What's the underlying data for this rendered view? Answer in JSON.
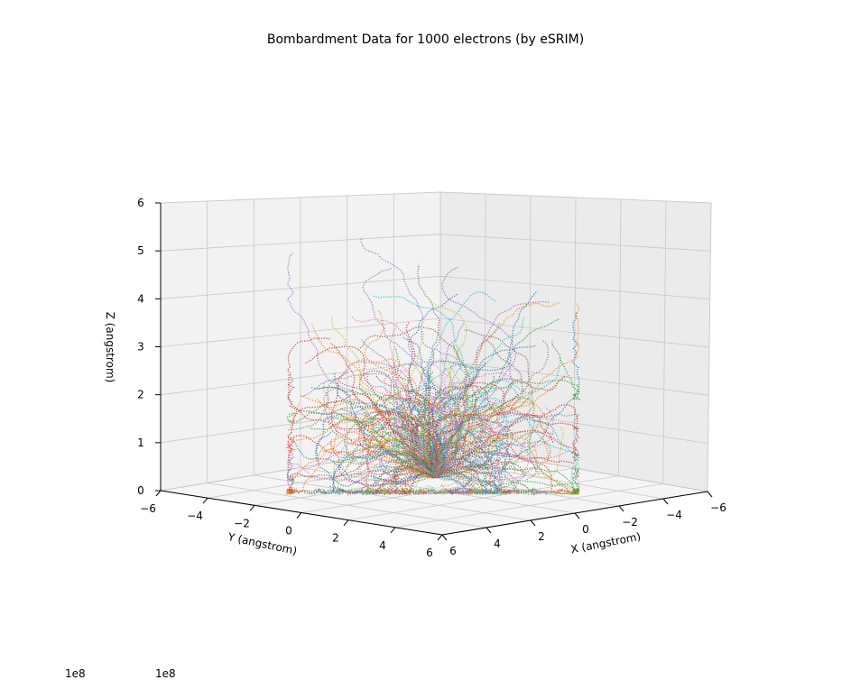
{
  "chart_data": {
    "type": "scatter",
    "title": "Bombardment Data for 1000 electrons (by eSRIM)",
    "xlabel": "X (angstrom)",
    "ylabel": "Y (angstrom)",
    "zlabel": "Z (angstrom)",
    "xlim": [
      -6,
      6
    ],
    "ylim": [
      -6,
      6
    ],
    "zlim": [
      0,
      6
    ],
    "x_ticks": [
      "6",
      "4",
      "2",
      "0",
      "−2",
      "−4",
      "−6"
    ],
    "y_ticks": [
      "−6",
      "−4",
      "−2",
      "0",
      "2",
      "4",
      "6"
    ],
    "z_ticks": [
      "0",
      "1",
      "2",
      "3",
      "4",
      "5",
      "6"
    ],
    "series_count": 1000,
    "offset_labels": [
      "1e8",
      "1e8"
    ],
    "grid": true,
    "colors": [
      "#1f77b4",
      "#ff7f0e",
      "#2ca02c",
      "#d62728",
      "#9467bd",
      "#8c564b",
      "#e377c2",
      "#7f7f7f",
      "#bcbd22",
      "#17becf"
    ]
  }
}
